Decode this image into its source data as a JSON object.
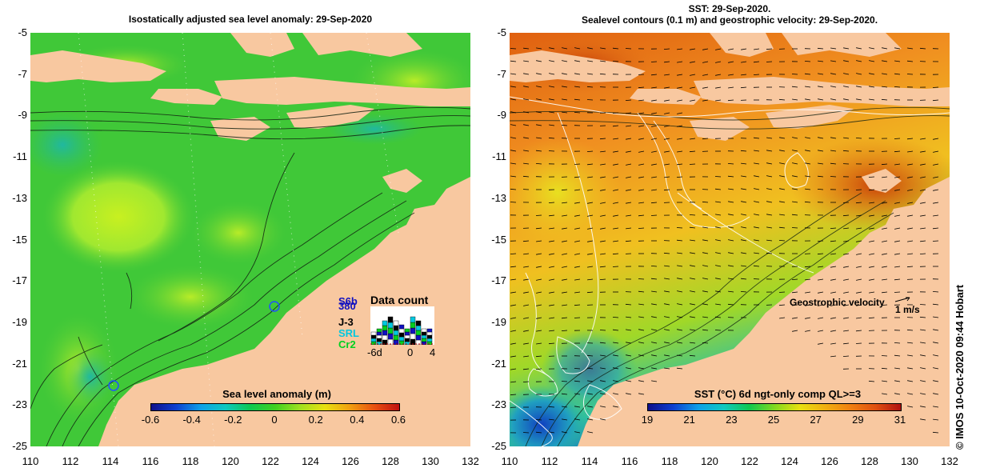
{
  "left_panel": {
    "title": "Isostatically adjusted sea level anomaly: 29-Sep-2020",
    "y_ticks": [
      "-5",
      "-7",
      "-9",
      "-11",
      "-13",
      "-15",
      "-17",
      "-19",
      "-21",
      "-23",
      "-25"
    ],
    "x_ticks": [
      "110",
      "112",
      "114",
      "116",
      "118",
      "120",
      "122",
      "124",
      "126",
      "128",
      "130",
      "132"
    ],
    "colorbar": {
      "title": "Sea level anomaly (m)",
      "labels": [
        "-0.6",
        "-0.4",
        "-0.2",
        "0",
        "0.2",
        "0.4",
        "0.6"
      ]
    },
    "data_count": {
      "title": "Data count",
      "missions": [
        "S6b",
        "380",
        "J-3",
        "SRL",
        "Cr2"
      ],
      "axis_labels": [
        "-6d",
        "0",
        "4"
      ],
      "mission_colors": [
        "#1010c0",
        "#1010c0",
        "#000000",
        "#00c8e0",
        "#00d020"
      ]
    }
  },
  "right_panel": {
    "title_line1": "SST: 29-Sep-2020.",
    "title_line2": "Sealevel contours (0.1 m) and geostrophic velocity: 29-Sep-2020.",
    "y_ticks": [
      "-5",
      "-7",
      "-9",
      "-11",
      "-13",
      "-15",
      "-17",
      "-19",
      "-21",
      "-23",
      "-25"
    ],
    "x_ticks": [
      "110",
      "112",
      "114",
      "116",
      "118",
      "120",
      "122",
      "124",
      "126",
      "128",
      "130",
      "132"
    ],
    "colorbar": {
      "title": "SST (°C) 6d ngt-only comp QL>=3",
      "labels": [
        "19",
        "21",
        "23",
        "25",
        "27",
        "29",
        "31"
      ]
    },
    "velocity_legend": {
      "label": "Geostrophic velocity",
      "scale": "1 m/s"
    }
  },
  "copyright": "© IMOS 10-Oct-2020 09:44 Hobart",
  "colors": {
    "land": "#f8c8a0",
    "sla_green": "#40c838",
    "sst_orange": "#f09020"
  }
}
